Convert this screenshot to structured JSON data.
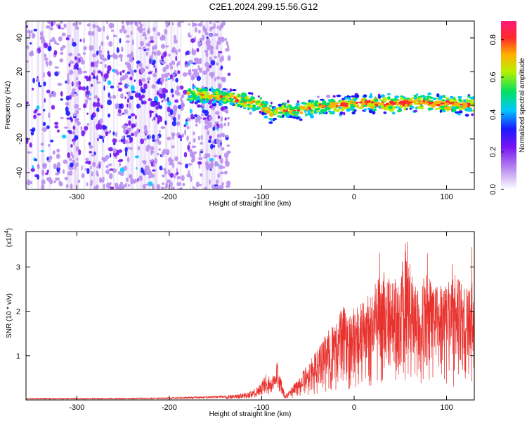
{
  "chart_data": [
    {
      "type": "heatmap",
      "title": "C2E1.2024.299.15.56.G12",
      "xlabel": "Height of straight line (km)",
      "ylabel": "Frequency (Hz)",
      "xlim": [
        -355,
        130
      ],
      "ylim": [
        -50,
        50
      ],
      "xticks": [
        "-300",
        "-200",
        "-100",
        "0",
        "100"
      ],
      "yticks": [
        "40",
        "20",
        "0",
        "-20",
        "-40"
      ],
      "colorbar": {
        "label": "Normalized spectral amplitude",
        "range": [
          0.0,
          0.9
        ],
        "ticks": [
          "0.0",
          "0.2",
          "0.4",
          "0.6",
          "0.8"
        ],
        "colormap": "white-purple-blue-cyan-green-yellow-red-magenta"
      },
      "ridge": {
        "x": [
          -180,
          -160,
          -140,
          -120,
          -100,
          -90,
          -80,
          -60,
          -40,
          -20,
          0,
          20,
          40,
          60,
          80,
          100,
          130
        ],
        "y": [
          7,
          6,
          5,
          3,
          0,
          -5,
          -3,
          -3,
          -1,
          0,
          1,
          1,
          1,
          2,
          1,
          1,
          0
        ]
      },
      "scatter_region": {
        "xrange": [
          -355,
          -135
        ],
        "yrange": [
          -50,
          50
        ]
      },
      "grid": false
    },
    {
      "type": "line",
      "xlabel": "Height of straight line (km)",
      "ylabel": "SNR (10 * v/v)",
      "scale_label_base": "(x10",
      "scale_label_exp": "4",
      "scale_label_end": ")",
      "xlim": [
        -355,
        130
      ],
      "ylim": [
        0,
        3.8
      ],
      "xticks": [
        "-300",
        "-200",
        "-100",
        "0",
        "100"
      ],
      "yticks": [
        "1",
        "2",
        "3"
      ],
      "series": [
        {
          "color": "#e8322e",
          "x": [
            -355,
            -300,
            -250,
            -200,
            -160,
            -130,
            -110,
            -100,
            -95,
            -90,
            -85,
            -82,
            -80,
            -75,
            -70,
            -60,
            -50,
            -40,
            -30,
            -20,
            -10,
            -5,
            0,
            10,
            20,
            30,
            40,
            50,
            55,
            60,
            70,
            80,
            90,
            100,
            110,
            120,
            130
          ],
          "y": [
            0.03,
            0.03,
            0.03,
            0.04,
            0.06,
            0.08,
            0.15,
            0.3,
            0.45,
            0.35,
            0.5,
            0.8,
            0.4,
            0.08,
            0.15,
            0.35,
            0.55,
            0.75,
            1.0,
            1.2,
            1.5,
            1.3,
            1.4,
            1.5,
            1.7,
            1.9,
            1.8,
            2.0,
            2.3,
            1.9,
            1.8,
            1.9,
            1.7,
            1.8,
            1.9,
            1.7,
            1.8
          ]
        }
      ],
      "grid": false
    }
  ]
}
